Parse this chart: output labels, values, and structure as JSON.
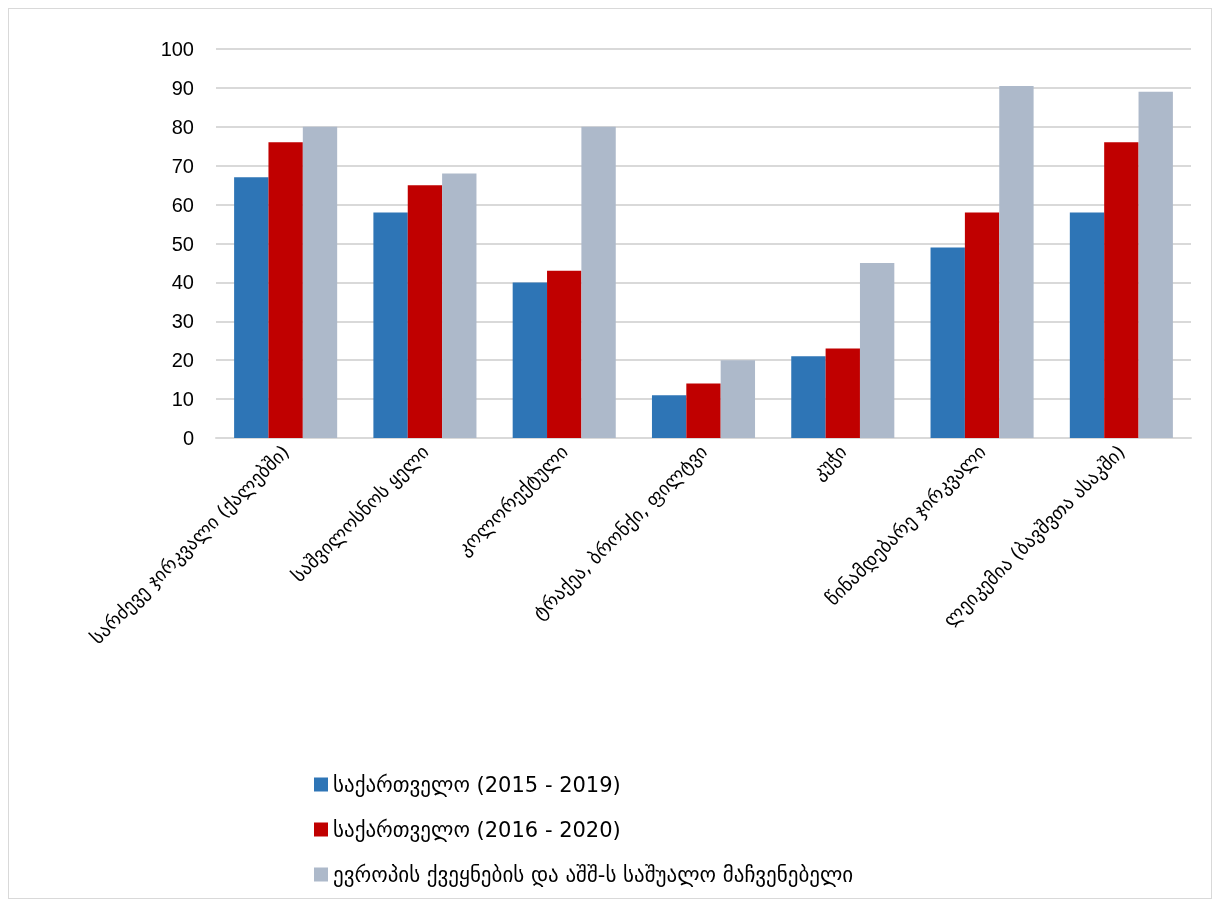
{
  "chart_data": {
    "type": "bar",
    "categories": [
      "სარძევე ჯირკვალი (ქალებში)",
      "საშვილოსნოს ყელი",
      "კოლორექტული",
      "ტრაქეა, ბრონქი, ფილტვი",
      "კუჭი",
      "წინამდებარე ჯირკვალი",
      "ლეიკემია (ბავშვთა ასაკში)"
    ],
    "series": [
      {
        "name": "საქართველო (2015 - 2019)",
        "color": "#2e75b6",
        "values": [
          67,
          58,
          40,
          11,
          21,
          49,
          58
        ]
      },
      {
        "name": "საქართველო (2016 - 2020)",
        "color": "#c00000",
        "values": [
          76,
          65,
          43,
          14,
          23,
          58,
          76
        ]
      },
      {
        "name": "ევროპის ქვეყნების და აშშ-ს საშუალო მაჩვენებელი",
        "color": "#adb9ca",
        "values": [
          80,
          68,
          80,
          20,
          45,
          90.5,
          89
        ]
      }
    ],
    "ylim": [
      0,
      100
    ],
    "yticks": [
      0,
      10,
      20,
      30,
      40,
      50,
      60,
      70,
      80,
      90,
      100
    ],
    "grid": "y",
    "legend": "bottom"
  }
}
